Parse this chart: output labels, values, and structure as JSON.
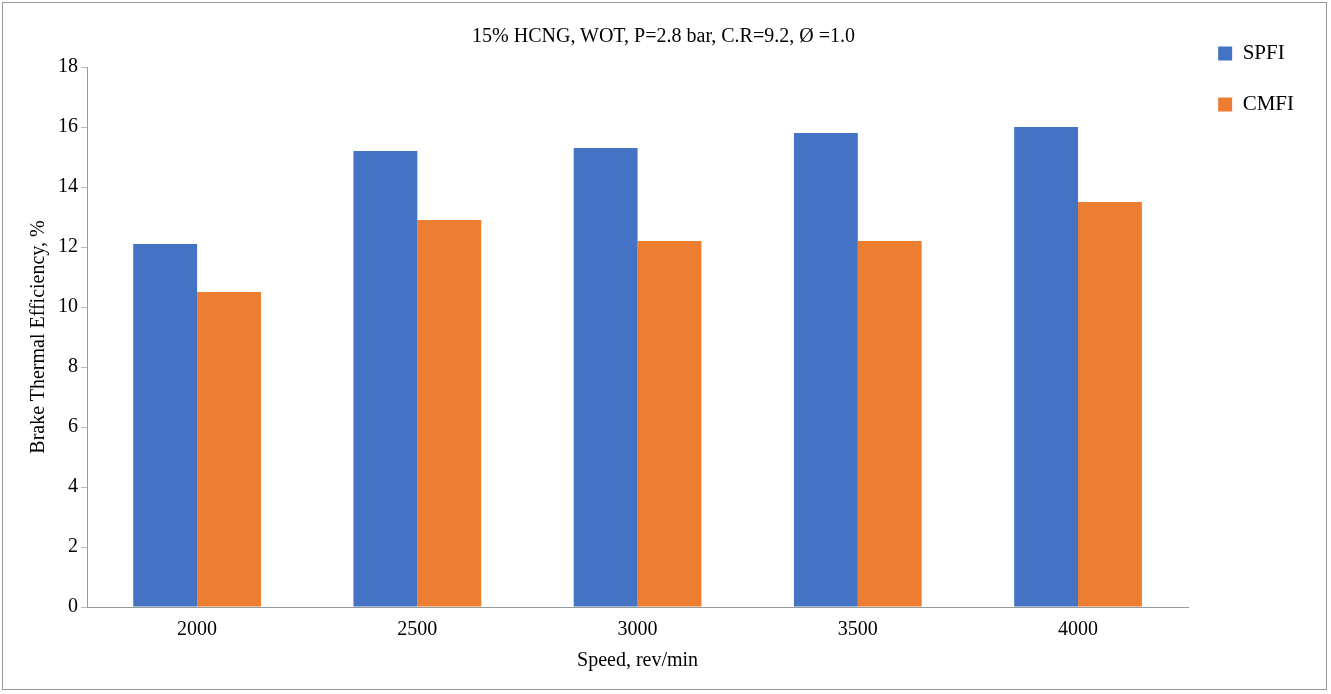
{
  "chart_data": {
    "type": "bar",
    "title": "15% HCNG, WOT, P=2.8 bar, C.R=9.2, Ø =1.0",
    "xlabel": "Speed, rev/min",
    "ylabel": "Brake Thermal Efficiency, %",
    "categories": [
      "2000",
      "2500",
      "3000",
      "3500",
      "4000"
    ],
    "series": [
      {
        "name": "SPFI",
        "color": "#4472c4",
        "values": [
          12.1,
          15.2,
          15.3,
          15.8,
          16.0
        ]
      },
      {
        "name": "CMFI",
        "color": "#ed7d31",
        "values": [
          10.5,
          12.9,
          12.2,
          12.2,
          13.5
        ]
      }
    ],
    "ylim": [
      0,
      18
    ],
    "yticks": [
      0,
      2,
      4,
      6,
      8,
      10,
      12,
      14,
      16,
      18
    ],
    "grid": false,
    "legend": "top right"
  }
}
